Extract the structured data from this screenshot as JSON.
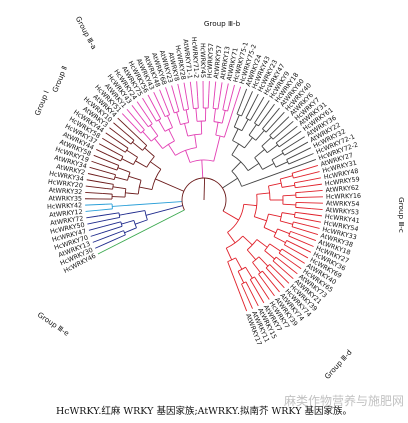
{
  "caption": "HcWRKY.红麻 WRKY 基因家族;AtWRKY.拟南芥 WRKY 基因家族。",
  "watermark": "麻类作物营养与施肥网",
  "groups": {
    "g1": "Group Ⅰ",
    "g2": "Group Ⅱ",
    "g3a": "Group Ⅲ-a",
    "g3b": "Group Ⅲ-b",
    "g3c": "Group Ⅲ-c",
    "g3d": "Group Ⅲ-d",
    "g3e": "Group Ⅲ-e"
  },
  "colors": {
    "g1": "#3aa84e",
    "g2": "#1e2a8c",
    "g3a": "#2a9fd8",
    "g3b": "#6b1a1a",
    "g3c": "#e23fb4",
    "g3d": "#444444",
    "g3e": "#e0202a"
  },
  "leaves": [
    {
      "name": "HcWRKY46",
      "g": "g1"
    },
    {
      "name": "HcWRKY30",
      "g": "g2"
    },
    {
      "name": "AtWRKY13",
      "g": "g2"
    },
    {
      "name": "HcWRKY70",
      "g": "g2"
    },
    {
      "name": "HcWRKY47",
      "g": "g2"
    },
    {
      "name": "HcWRKY50",
      "g": "g2"
    },
    {
      "name": "AtWRKY72",
      "g": "g2"
    },
    {
      "name": "AtWRKY12",
      "g": "g3a"
    },
    {
      "name": "HcWRKY42",
      "g": "g3a"
    },
    {
      "name": "AtWRKY35",
      "g": "g3b"
    },
    {
      "name": "AtWRKY32",
      "g": "g3b"
    },
    {
      "name": "HcWRKY20",
      "g": "g3b"
    },
    {
      "name": "HcWRKY34",
      "g": "g3b"
    },
    {
      "name": "AtWRKY2",
      "g": "g3b"
    },
    {
      "name": "AtWRKY34",
      "g": "g3b"
    },
    {
      "name": "HcWRKY19",
      "g": "g3b"
    },
    {
      "name": "AtWRKY58",
      "g": "g3b"
    },
    {
      "name": "AtWRKY44",
      "g": "g3b"
    },
    {
      "name": "HcWRKY37",
      "g": "g3b"
    },
    {
      "name": "HcWRKY58",
      "g": "g3b"
    },
    {
      "name": "HcWRKY44",
      "g": "g3b"
    },
    {
      "name": "AtWRKY3",
      "g": "g3b"
    },
    {
      "name": "HcWRKY10",
      "g": "g3b"
    },
    {
      "name": "AtWRKY4",
      "g": "g3b"
    },
    {
      "name": "HcWRKY51",
      "g": "g3c"
    },
    {
      "name": "AtWRKY1",
      "g": "g3c"
    },
    {
      "name": "HcWRKY43",
      "g": "g3c"
    },
    {
      "name": "HcWRKY24",
      "g": "g3c"
    },
    {
      "name": "AtWRKY75",
      "g": "g3c"
    },
    {
      "name": "HcWRKY56",
      "g": "g3c"
    },
    {
      "name": "AtWRKY43",
      "g": "g3c"
    },
    {
      "name": "AtWRKY48",
      "g": "g3c"
    },
    {
      "name": "AtWRKY68",
      "g": "g3c"
    },
    {
      "name": "AtWRKY23",
      "g": "g3c"
    },
    {
      "name": "AtWRKY8",
      "g": "g3c"
    },
    {
      "name": "HcWRKY28",
      "g": "g3c"
    },
    {
      "name": "AtWRKY71-1",
      "g": "g3c"
    },
    {
      "name": "HcWRKY71-2",
      "g": "g3c"
    },
    {
      "name": "HcWRKY45",
      "g": "g3c"
    },
    {
      "name": "HcWRKY57",
      "g": "g3c"
    },
    {
      "name": "AtWRKY57",
      "g": "g3c"
    },
    {
      "name": "AtWRKY13",
      "g": "g3c"
    },
    {
      "name": "AtWRKY71",
      "g": "g3c"
    },
    {
      "name": "HcWRKY75-1",
      "g": "g3c"
    },
    {
      "name": "HcWRKY75-2",
      "g": "g3c"
    },
    {
      "name": "AtWRKY24",
      "g": "g3d"
    },
    {
      "name": "HcWRKY43",
      "g": "g3d"
    },
    {
      "name": "HcWRKY23",
      "g": "g3d"
    },
    {
      "name": "HcWRKY47",
      "g": "g3d"
    },
    {
      "name": "HcWRKY9",
      "g": "g3d"
    },
    {
      "name": "HcWRKY18",
      "g": "g3d"
    },
    {
      "name": "AtWRKY60",
      "g": "g3d"
    },
    {
      "name": "HcWRKY40",
      "g": "g3d"
    },
    {
      "name": "AtWRKY6",
      "g": "g3d"
    },
    {
      "name": "HcWRKY7",
      "g": "g3d"
    },
    {
      "name": "AtWRKY31",
      "g": "g3d"
    },
    {
      "name": "HcWRKY61",
      "g": "g3d"
    },
    {
      "name": "AtWRKY36",
      "g": "g3d"
    },
    {
      "name": "AtWRKY22",
      "g": "g3d"
    },
    {
      "name": "HcWRKY32",
      "g": "g3d"
    },
    {
      "name": "HcWRKY72-1",
      "g": "g3d"
    },
    {
      "name": "HcWRKY72-2",
      "g": "g3d"
    },
    {
      "name": "AtWRKY27",
      "g": "g3e"
    },
    {
      "name": "HcWRKY31",
      "g": "g3e"
    },
    {
      "name": "HcWRKY48",
      "g": "g3e"
    },
    {
      "name": "HcWRKY59",
      "g": "g3e"
    },
    {
      "name": "AtWRKY62",
      "g": "g3e"
    },
    {
      "name": "HcWRKY16",
      "g": "g3e"
    },
    {
      "name": "AtWRKY54",
      "g": "g3e"
    },
    {
      "name": "AtWRKY53",
      "g": "g3e"
    },
    {
      "name": "HcWRKY41",
      "g": "g3e"
    },
    {
      "name": "HcWRKY54",
      "g": "g3e"
    },
    {
      "name": "HcWRKY33",
      "g": "g3e"
    },
    {
      "name": "AtWRKY38",
      "g": "g3e"
    },
    {
      "name": "AtWRKY18",
      "g": "g3e"
    },
    {
      "name": "HcWRKY27",
      "g": "g3e"
    },
    {
      "name": "HcWRKY36",
      "g": "g3e"
    },
    {
      "name": "HcWRKY69",
      "g": "g3e"
    },
    {
      "name": "AtWRKY40",
      "g": "g3e"
    },
    {
      "name": "HcWRKY65",
      "g": "g3e"
    },
    {
      "name": "AtWRKY73",
      "g": "g3e"
    },
    {
      "name": "AtWRKY21",
      "g": "g3e"
    },
    {
      "name": "HcWRKY39",
      "g": "g3e"
    },
    {
      "name": "HcWRKY74",
      "g": "g3e"
    },
    {
      "name": "AtWRKY74",
      "g": "g3e"
    },
    {
      "name": "AtWRKY39",
      "g": "g3e"
    },
    {
      "name": "HcWRKY7",
      "g": "g3e"
    },
    {
      "name": "AtWRKY7",
      "g": "g3e"
    },
    {
      "name": "AtWRKY15",
      "g": "g3e"
    },
    {
      "name": "AtWRKY11",
      "g": "g3e"
    },
    {
      "name": "AtWRKY17",
      "g": "g3e"
    }
  ]
}
